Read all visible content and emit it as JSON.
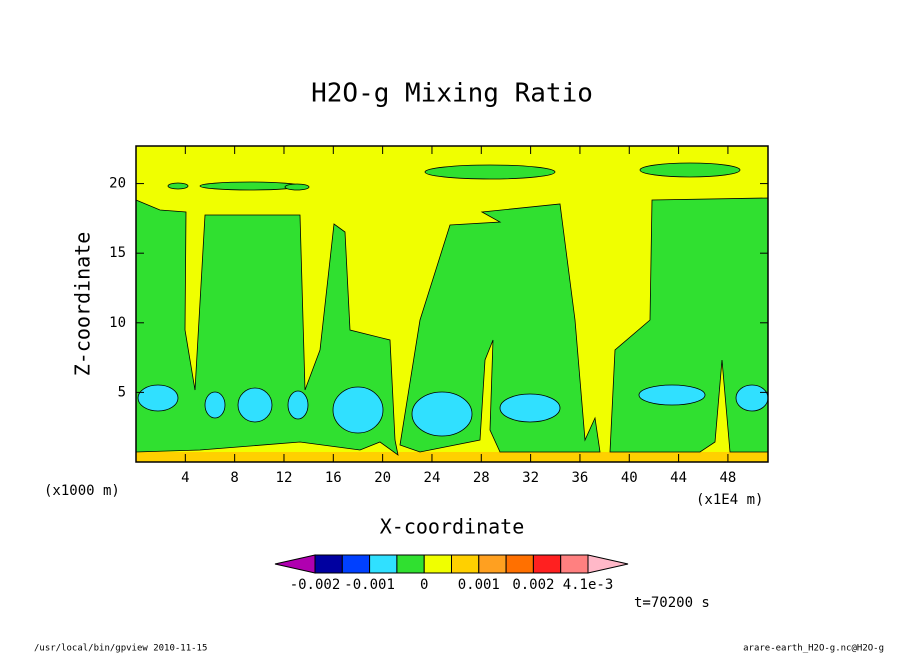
{
  "chart_data": {
    "type": "contour",
    "title": "H2O-g Mixing Ratio",
    "x_label": "X-coordinate",
    "y_label": "Z-coordinate",
    "x_unit_note": "(x1000 m)",
    "x_scale_note": "(x1E4 m)",
    "xlim": [
      0,
      51.25
    ],
    "xticks": [
      4,
      8,
      12,
      16,
      20,
      24,
      28,
      32,
      36,
      40,
      44,
      48
    ],
    "ylim": [
      0,
      22.7
    ],
    "yticks": [
      5,
      10,
      15,
      20
    ],
    "colorbar": {
      "levels": [
        -0.002,
        -0.0015,
        -0.001,
        -0.0005,
        0,
        0.0005,
        0.001,
        0.0015,
        0.002,
        0.003,
        0.0041
      ],
      "colors": [
        "#0000a0",
        "#0040ff",
        "#30e0ff",
        "#30e030",
        "#f0ff00",
        "#ffd000",
        "#ffa020",
        "#ff7000",
        "#ff2020",
        "#ff8080"
      ],
      "under_color": "#b000b0",
      "over_color": "#ffb8c8",
      "ticks": [
        -0.002,
        -0.001,
        0,
        0.001,
        0.002,
        {
          "value": 0.0041,
          "label": "4.1e-3"
        }
      ]
    },
    "time_label": "t=70200 s",
    "footer_left": "/usr/local/bin/gpview  2010-11-15",
    "footer_right": "arare-earth_H2O-g.nc@H2O-g"
  }
}
